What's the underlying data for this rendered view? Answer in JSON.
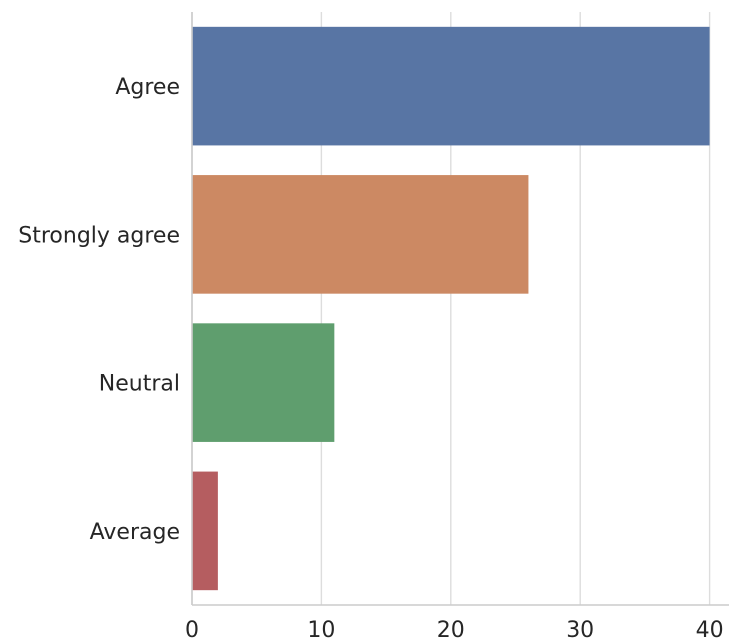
{
  "chart_data": {
    "type": "bar",
    "orientation": "horizontal",
    "categories": [
      "Agree",
      "Strongly agree",
      "Neutral",
      "Average"
    ],
    "values": [
      40,
      26,
      11,
      2
    ],
    "colors": [
      "#5875a4",
      "#cc8963",
      "#5f9e6e",
      "#b55d60"
    ],
    "title": "",
    "xlabel": "",
    "ylabel": "",
    "xlim": [
      0,
      41.5
    ],
    "xticks": [
      0,
      10,
      20,
      30,
      40
    ],
    "grid": "vertical",
    "legend": "none"
  }
}
